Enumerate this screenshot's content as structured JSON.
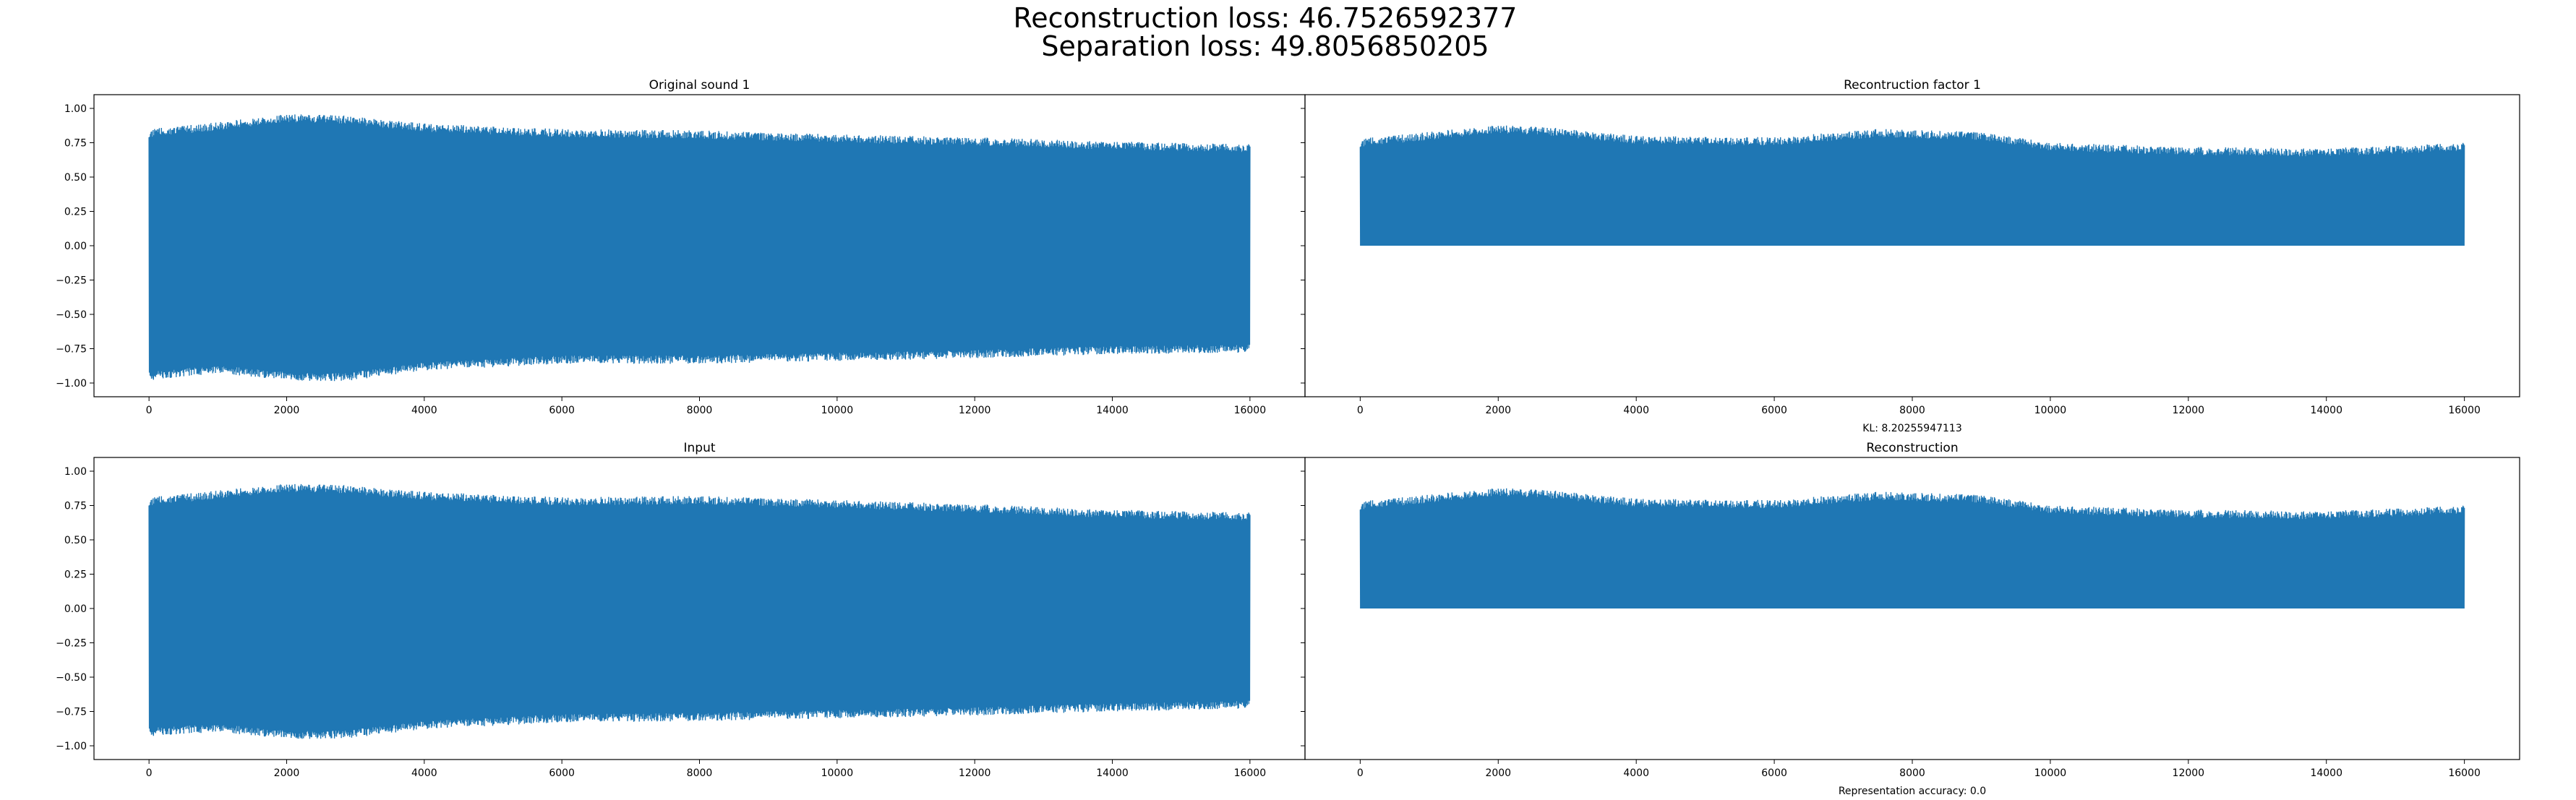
{
  "figure": {
    "suptitle_lines": [
      "Reconstruction loss: 46.7526592377",
      "Separation loss: 49.8056850205"
    ],
    "series_color": "#1f77b4"
  },
  "chart_data": [
    {
      "type": "line",
      "title": "Original sound 1",
      "note": "",
      "xlim": [
        -800,
        16800
      ],
      "ylim": [
        -1.1,
        1.1
      ],
      "x_ticks": [
        0,
        2000,
        4000,
        6000,
        8000,
        10000,
        12000,
        14000,
        16000
      ],
      "y_ticks": [
        -1.0,
        -0.75,
        -0.5,
        -0.25,
        0.0,
        0.25,
        0.5,
        0.75,
        1.0
      ],
      "y_tick_labels": [
        "−1.00",
        "−0.75",
        "−0.50",
        "−0.25",
        "0.00",
        "0.25",
        "0.50",
        "0.75",
        "1.00"
      ],
      "show_y_labels": true,
      "envelope": {
        "x": [
          0,
          1000,
          2000,
          2800,
          4000,
          6000,
          8000,
          10000,
          12000,
          14000,
          16000
        ],
        "upper": [
          0.82,
          0.87,
          0.93,
          0.92,
          0.86,
          0.82,
          0.81,
          0.78,
          0.76,
          0.73,
          0.71
        ],
        "lower": [
          -0.95,
          -0.9,
          -0.95,
          -0.96,
          -0.88,
          -0.83,
          -0.83,
          -0.81,
          -0.79,
          -0.76,
          -0.75
        ]
      }
    },
    {
      "type": "line",
      "title": "Recontruction factor 1",
      "note": "KL: 8.20255947113",
      "xlim": [
        -800,
        16800
      ],
      "ylim": [
        -1.1,
        1.1
      ],
      "x_ticks": [
        0,
        2000,
        4000,
        6000,
        8000,
        10000,
        12000,
        14000,
        16000
      ],
      "y_ticks": [],
      "y_tick_labels": [],
      "show_y_labels": false,
      "envelope": {
        "x": [
          0,
          1000,
          2000,
          2800,
          4000,
          6000,
          7500,
          9000,
          10000,
          12000,
          14000,
          16000
        ],
        "upper": [
          0.75,
          0.8,
          0.85,
          0.83,
          0.77,
          0.76,
          0.82,
          0.8,
          0.72,
          0.69,
          0.68,
          0.72
        ],
        "lower": [
          0,
          0,
          0,
          0,
          0,
          0,
          0,
          0,
          0,
          0,
          0,
          0
        ]
      }
    },
    {
      "type": "line",
      "title": "Input",
      "note": "",
      "xlim": [
        -800,
        16800
      ],
      "ylim": [
        -1.1,
        1.1
      ],
      "x_ticks": [
        0,
        2000,
        4000,
        6000,
        8000,
        10000,
        12000,
        14000,
        16000
      ],
      "y_ticks": [
        -1.0,
        -0.75,
        -0.5,
        -0.25,
        0.0,
        0.25,
        0.5,
        0.75,
        1.0
      ],
      "y_tick_labels": [
        "−1.00",
        "−0.75",
        "−0.50",
        "−0.25",
        "0.00",
        "0.25",
        "0.50",
        "0.75",
        "1.00"
      ],
      "show_y_labels": true,
      "envelope": {
        "x": [
          0,
          1000,
          2000,
          2800,
          4000,
          6000,
          8000,
          10000,
          12000,
          14000,
          16000
        ],
        "upper": [
          0.78,
          0.83,
          0.88,
          0.87,
          0.82,
          0.78,
          0.79,
          0.76,
          0.73,
          0.69,
          0.67
        ],
        "lower": [
          -0.9,
          -0.87,
          -0.92,
          -0.92,
          -0.85,
          -0.8,
          -0.79,
          -0.77,
          -0.75,
          -0.72,
          -0.7
        ]
      }
    },
    {
      "type": "line",
      "title": "Reconstruction",
      "note": "Representation accuracy: 0.0",
      "xlim": [
        -800,
        16800
      ],
      "ylim": [
        -1.1,
        1.1
      ],
      "x_ticks": [
        0,
        2000,
        4000,
        6000,
        8000,
        10000,
        12000,
        14000,
        16000
      ],
      "y_ticks": [],
      "y_tick_labels": [],
      "show_y_labels": false,
      "envelope": {
        "x": [
          0,
          1000,
          2000,
          2800,
          4000,
          6000,
          7500,
          9000,
          10000,
          12000,
          14000,
          16000
        ],
        "upper": [
          0.75,
          0.8,
          0.85,
          0.83,
          0.77,
          0.76,
          0.82,
          0.8,
          0.72,
          0.69,
          0.68,
          0.72
        ],
        "lower": [
          0,
          0,
          0,
          0,
          0,
          0,
          0,
          0,
          0,
          0,
          0,
          0
        ]
      }
    }
  ]
}
